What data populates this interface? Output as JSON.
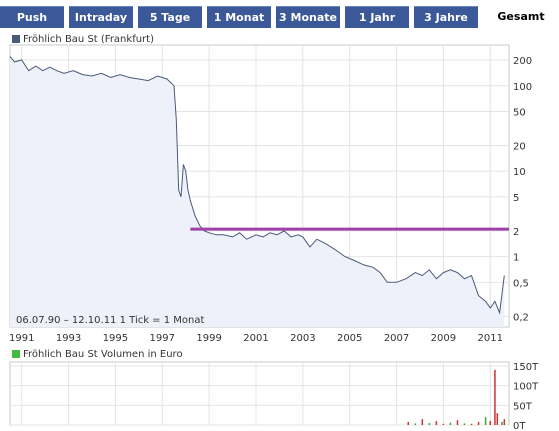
{
  "tabs": [
    {
      "label": "Push",
      "active": false
    },
    {
      "label": "Intraday",
      "active": false
    },
    {
      "label": "5 Tage",
      "active": false
    },
    {
      "label": "1 Monat",
      "active": false
    },
    {
      "label": "3 Monate",
      "active": false
    },
    {
      "label": "1 Jahr",
      "active": false
    },
    {
      "label": "3 Jahre",
      "active": false
    },
    {
      "label": "Gesamt",
      "active": true
    }
  ],
  "colors": {
    "tab_bg": "#3b5998",
    "price_line": "#4a5a7a",
    "price_fill": "#eef1fa",
    "resistance_line": "#a040a8",
    "volume_bar": "#cc3333",
    "volume_bar_alt": "#33aa33",
    "price_legend_swatch": "#4a5a7a",
    "volume_legend_swatch": "#44bb44"
  },
  "chart_data": [
    {
      "type": "line",
      "legend": "Fröhlich Bau St (Frankfurt)",
      "scale": "log",
      "yticks": [
        "200",
        "100",
        "50",
        "20",
        "10",
        "5",
        "2",
        "1",
        "0,5",
        "0,2"
      ],
      "ytick_values": [
        200,
        100,
        50,
        20,
        10,
        5,
        2,
        1,
        0.5,
        0.2
      ],
      "xticks": [
        "1991",
        "1993",
        "1995",
        "1997",
        "1999",
        "2001",
        "2003",
        "2005",
        "2007",
        "2009",
        "2011"
      ],
      "xtick_values": [
        1991,
        1993,
        1995,
        1997,
        1999,
        2001,
        2003,
        2005,
        2007,
        2009,
        2011
      ],
      "xlim": [
        1990.5,
        2011.8
      ],
      "ylim": [
        0.15,
        300
      ],
      "grid": true,
      "annotation": "06.07.90 – 12.10.11   1 Tick = 1 Monat",
      "resistance_level": {
        "value": 2.1,
        "x_from": 1998.2,
        "x_to": 2011.8
      },
      "x": [
        1990.5,
        1990.7,
        1991.0,
        1991.3,
        1991.6,
        1991.9,
        1992.2,
        1992.5,
        1992.8,
        1993.2,
        1993.6,
        1994.0,
        1994.4,
        1994.8,
        1995.2,
        1995.6,
        1996.0,
        1996.4,
        1996.8,
        1997.2,
        1997.5,
        1997.6,
        1997.7,
        1997.8,
        1997.9,
        1998.0,
        1998.1,
        1998.2,
        1998.4,
        1998.6,
        1998.8,
        1999.0,
        1999.3,
        1999.6,
        2000.0,
        2000.3,
        2000.6,
        2001.0,
        2001.3,
        2001.6,
        2001.9,
        2002.2,
        2002.5,
        2002.8,
        2003.0,
        2003.3,
        2003.6,
        2004.0,
        2004.4,
        2004.8,
        2005.2,
        2005.6,
        2006.0,
        2006.3,
        2006.6,
        2007.0,
        2007.4,
        2007.8,
        2008.1,
        2008.4,
        2008.7,
        2009.0,
        2009.3,
        2009.6,
        2009.9,
        2010.2,
        2010.5,
        2010.8,
        2011.0,
        2011.2,
        2011.4,
        2011.6
      ],
      "y": [
        220,
        190,
        200,
        150,
        170,
        150,
        165,
        150,
        140,
        150,
        135,
        130,
        140,
        125,
        135,
        125,
        120,
        115,
        130,
        120,
        100,
        40,
        6,
        5,
        12,
        10,
        6,
        4.5,
        3,
        2.3,
        2,
        1.9,
        1.8,
        1.8,
        1.7,
        1.9,
        1.6,
        1.8,
        1.7,
        1.9,
        1.8,
        2.0,
        1.7,
        1.8,
        1.7,
        1.3,
        1.6,
        1.4,
        1.2,
        1.0,
        0.9,
        0.8,
        0.75,
        0.65,
        0.5,
        0.5,
        0.55,
        0.65,
        0.6,
        0.7,
        0.55,
        0.65,
        0.7,
        0.65,
        0.55,
        0.6,
        0.35,
        0.3,
        0.25,
        0.3,
        0.22,
        0.6
      ]
    },
    {
      "type": "bar",
      "legend": "Fröhlich Bau St Volumen in Euro",
      "yticks": [
        "150T",
        "100T",
        "50T",
        "0T"
      ],
      "ytick_values": [
        150,
        100,
        50,
        0
      ],
      "ylim": [
        0,
        160
      ],
      "unit": "T",
      "x": [
        2007.5,
        2007.8,
        2008.1,
        2008.4,
        2008.7,
        2009.0,
        2009.3,
        2009.6,
        2009.9,
        2010.2,
        2010.5,
        2010.8,
        2011.0,
        2011.2,
        2011.3,
        2011.5,
        2011.6
      ],
      "values": [
        8,
        4,
        15,
        5,
        10,
        3,
        6,
        12,
        4,
        3,
        8,
        20,
        10,
        140,
        30,
        8,
        15
      ],
      "alt": [
        false,
        true,
        false,
        true,
        false,
        false,
        true,
        false,
        true,
        false,
        false,
        true,
        false,
        false,
        false,
        true,
        false
      ]
    }
  ]
}
